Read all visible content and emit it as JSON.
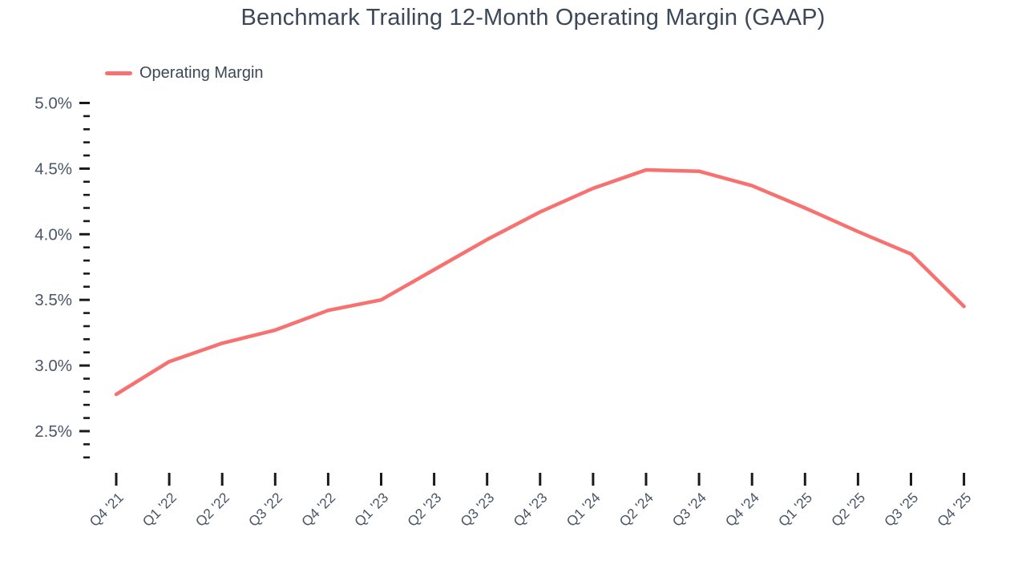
{
  "title": "Benchmark Trailing 12-Month Operating Margin (GAAP)",
  "legend": {
    "label": "Operating Margin"
  },
  "colors": {
    "accent": "#f87171",
    "title_text": "#3c4858",
    "axis_text": "#4a5568",
    "tick": "#1a1a1a",
    "background": "#ffffff"
  },
  "chart_data": {
    "type": "line",
    "title": "Benchmark Trailing 12-Month Operating Margin (GAAP)",
    "xlabel": "",
    "ylabel": "",
    "grid": false,
    "legend_position": "top-left",
    "categories": [
      "Q4 '21",
      "Q1 '22",
      "Q2 '22",
      "Q3 '22",
      "Q4 '22",
      "Q1 '23",
      "Q2 '23",
      "Q3 '23",
      "Q4 '23",
      "Q1 '24",
      "Q2 '24",
      "Q3 '24",
      "Q4 '24",
      "Q1 '25",
      "Q2 '25",
      "Q3 '25",
      "Q4 '25"
    ],
    "series": [
      {
        "name": "Operating Margin",
        "color": "#f87171",
        "unit": "percent",
        "values": [
          2.78,
          3.03,
          3.17,
          3.27,
          3.42,
          3.5,
          3.73,
          3.96,
          4.17,
          4.35,
          4.49,
          4.48,
          4.37,
          4.2,
          4.02,
          3.85,
          3.45
        ]
      }
    ],
    "y_axis": {
      "min": 2.3,
      "max": 5.0,
      "major_tick_step": 0.5,
      "minor_tick_step": 0.1,
      "tick_labels": [
        "5.0%",
        "4.5%",
        "4.0%",
        "3.5%",
        "3.0%",
        "2.5%"
      ],
      "format": "percent"
    }
  }
}
